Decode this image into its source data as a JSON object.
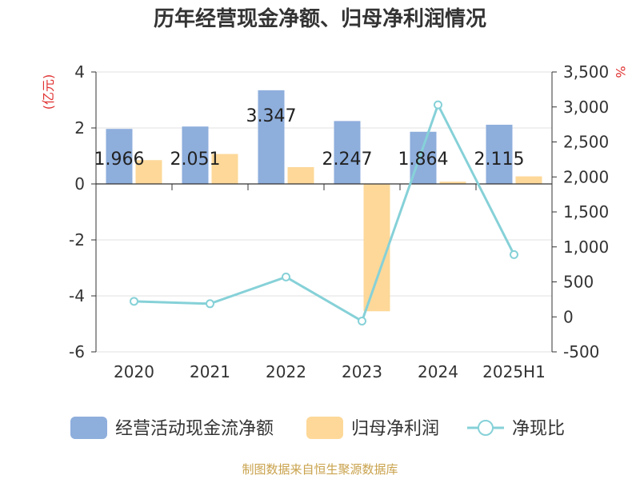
{
  "chart_data": {
    "type": "bar",
    "title": "历年经营现金净额、归母净利润情况",
    "categories": [
      "2020",
      "2021",
      "2022",
      "2023",
      "2024",
      "2025H1"
    ],
    "y_left": {
      "unit": "(亿元)",
      "range": [
        -6,
        4
      ],
      "ticks": [
        "4",
        "2",
        "0",
        "-2",
        "-4",
        "-6"
      ],
      "tick_values": [
        4,
        2,
        0,
        -2,
        -4,
        -6
      ]
    },
    "y_right": {
      "unit": "%",
      "range": [
        -500,
        3500
      ],
      "ticks": [
        "3,500",
        "3,000",
        "2,500",
        "2,000",
        "1,500",
        "1,000",
        "500",
        "0",
        "-500"
      ],
      "tick_values": [
        3500,
        3000,
        2500,
        2000,
        1500,
        1000,
        500,
        0,
        -500
      ]
    },
    "series": [
      {
        "name": "经营活动现金流净额",
        "type": "bar",
        "axis": "left",
        "color": "#8eaedc",
        "values": [
          1.966,
          2.051,
          3.347,
          2.247,
          1.864,
          2.115
        ],
        "labels": [
          "1.966",
          "2.051",
          "3.347",
          "2.247",
          "1.864",
          "2.115"
        ]
      },
      {
        "name": "归母净利润",
        "type": "bar",
        "axis": "left",
        "color": "#fdd899",
        "values": [
          0.85,
          1.07,
          0.6,
          -4.55,
          0.08,
          0.27
        ]
      },
      {
        "name": "净现比",
        "type": "line",
        "axis": "right",
        "color": "#86d1d8",
        "values": [
          222,
          188,
          570,
          -60,
          3030,
          890
        ]
      }
    ],
    "grid": true,
    "legend_position": "bottom"
  },
  "source": "制图数据来自恒生聚源数据库",
  "colors": {
    "title": "#333333",
    "axis_unit": "#e03030",
    "source": "#c9a24c",
    "grid": "#e0e0e0",
    "axis": "#333333"
  }
}
